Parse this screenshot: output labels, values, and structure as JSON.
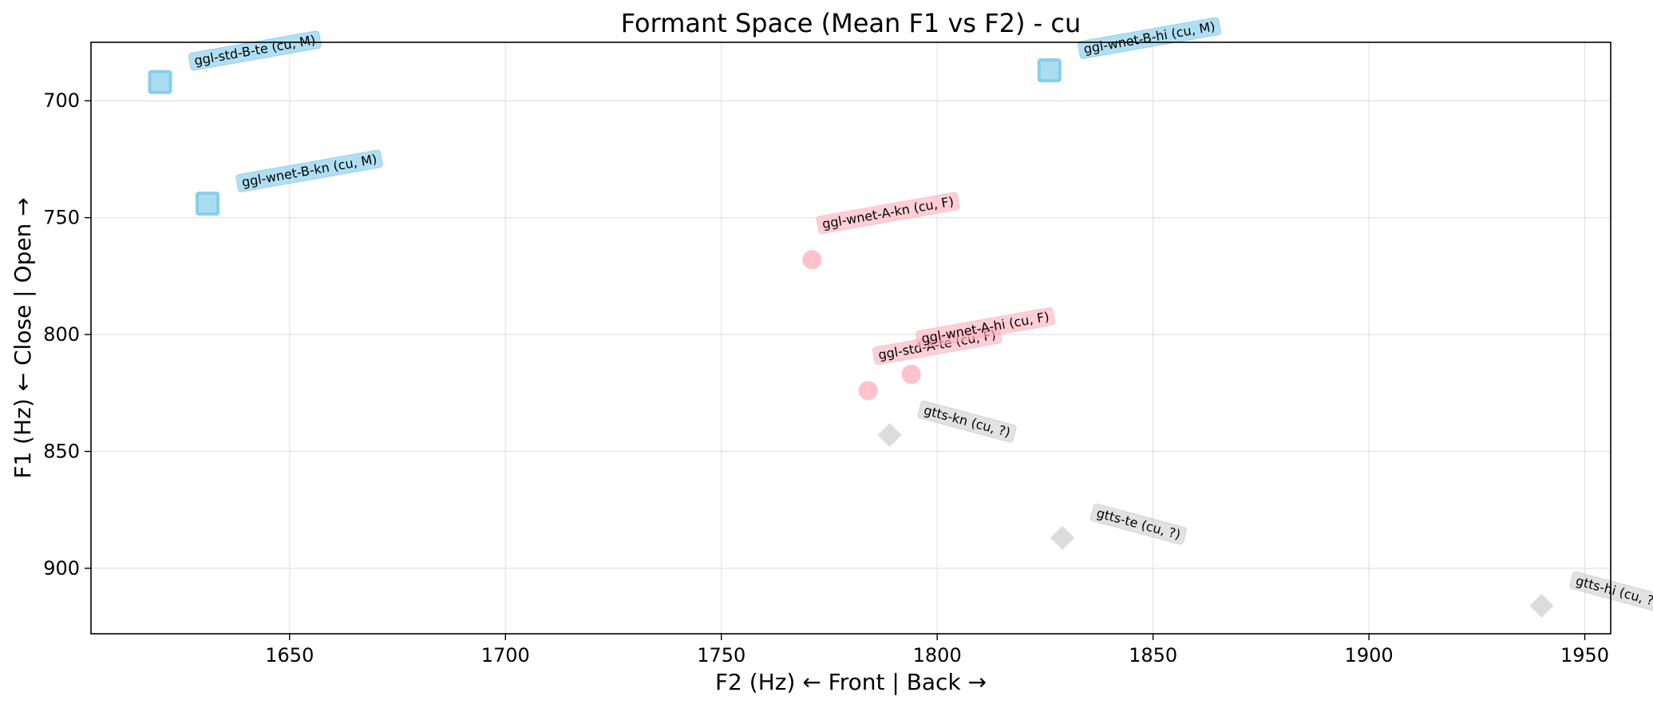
{
  "chart_data": {
    "type": "scatter",
    "title": "Formant Space (Mean F1 vs F2) - cu",
    "xlabel": "F2 (Hz) ← Front | Back →",
    "ylabel": "F1 (Hz) ← Close | Open →",
    "xlim": [
      1604,
      1956
    ],
    "ylim": [
      928,
      675
    ],
    "y_inverted": true,
    "grid": true,
    "xticks": [
      1650,
      1700,
      1750,
      1800,
      1850,
      1900,
      1950
    ],
    "yticks": [
      700,
      750,
      800,
      850,
      900
    ],
    "colors": {
      "M": "#87ceeb",
      "F": "#ffb6c1",
      "unknown": "#d3d3d3"
    },
    "points": [
      {
        "label": "ggl-std-B-te (cu, M)",
        "x": 1620,
        "y": 692,
        "group": "M",
        "marker": "square"
      },
      {
        "label": "ggl-wnet-B-kn (cu, M)",
        "x": 1631,
        "y": 744,
        "group": "M",
        "marker": "square"
      },
      {
        "label": "ggl-wnet-B-hi (cu, M)",
        "x": 1826,
        "y": 687,
        "group": "M",
        "marker": "square"
      },
      {
        "label": "ggl-wnet-A-kn (cu, F)",
        "x": 1771,
        "y": 768,
        "group": "F",
        "marker": "circle"
      },
      {
        "label": "ggl-std-A-te (cu, F)",
        "x": 1784,
        "y": 824,
        "group": "F",
        "marker": "circle"
      },
      {
        "label": "ggl-wnet-A-hi (cu, F)",
        "x": 1794,
        "y": 817,
        "group": "F",
        "marker": "circle"
      },
      {
        "label": "gtts-kn (cu, ?)",
        "x": 1789,
        "y": 843,
        "group": "unknown",
        "marker": "diamond"
      },
      {
        "label": "gtts-te (cu, ?)",
        "x": 1829,
        "y": 887,
        "group": "unknown",
        "marker": "diamond"
      },
      {
        "label": "gtts-hi (cu, ?)",
        "x": 1940,
        "y": 916,
        "group": "unknown",
        "marker": "diamond"
      }
    ]
  }
}
